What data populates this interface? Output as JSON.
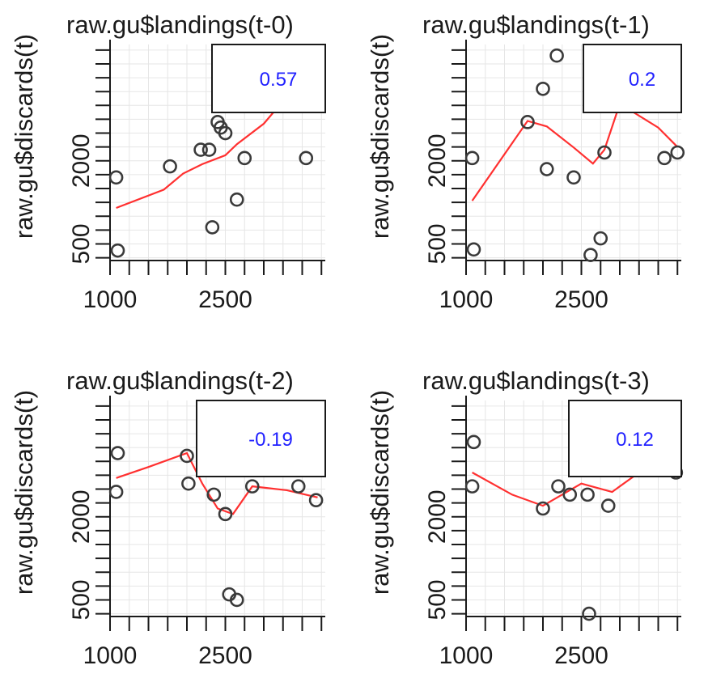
{
  "colors": {
    "series_line": "#ff3030",
    "points": "#3a3a3a",
    "correlation_text": "#2020ff",
    "grid": "#e6e6e6",
    "axis": "#1a1a1a"
  },
  "chart_data": [
    {
      "type": "scatter",
      "title": "raw.gu$landings(t-0)",
      "ylabel": "raw.gu$discards(t)",
      "xlim": [
        1000,
        3800
      ],
      "ylim": [
        200,
        4100
      ],
      "x_ticks": [
        1000,
        2500
      ],
      "y_ticks": [
        500,
        2000
      ],
      "correlation": "0.57",
      "points": [
        [
          1080,
          1700
        ],
        [
          1100,
          380
        ],
        [
          1780,
          1900
        ],
        [
          2180,
          2200
        ],
        [
          2290,
          2200
        ],
        [
          2400,
          2700
        ],
        [
          2500,
          2500
        ],
        [
          2520,
          3200
        ],
        [
          2650,
          3200
        ],
        [
          2650,
          1300
        ],
        [
          2440,
          2600
        ],
        [
          2750,
          2050
        ],
        [
          3550,
          2050
        ],
        [
          2330,
          800
        ]
      ],
      "smooth_line": [
        [
          1080,
          1150
        ],
        [
          1700,
          1480
        ],
        [
          1950,
          1770
        ],
        [
          2200,
          1940
        ],
        [
          2500,
          2100
        ],
        [
          2650,
          2300
        ],
        [
          3000,
          2670
        ],
        [
          3300,
          3160
        ]
      ]
    },
    {
      "type": "scatter",
      "title": "raw.gu$landings(t-1)",
      "ylabel": "raw.gu$discards(t)",
      "xlim": [
        1000,
        3800
      ],
      "ylim": [
        200,
        4100
      ],
      "x_ticks": [
        1000,
        2500
      ],
      "y_ticks": [
        500,
        2000
      ],
      "correlation": "0.2",
      "points": [
        [
          1080,
          2050
        ],
        [
          1100,
          400
        ],
        [
          1800,
          2700
        ],
        [
          2000,
          3300
        ],
        [
          2180,
          3900
        ],
        [
          2050,
          1850
        ],
        [
          2400,
          1700
        ],
        [
          2620,
          300
        ],
        [
          2680,
          3250
        ],
        [
          2800,
          2150
        ],
        [
          2750,
          600
        ],
        [
          3580,
          2050
        ],
        [
          3750,
          2150
        ]
      ],
      "smooth_line": [
        [
          1080,
          1280
        ],
        [
          1800,
          2720
        ],
        [
          2050,
          2620
        ],
        [
          2400,
          2240
        ],
        [
          2650,
          1950
        ],
        [
          2800,
          2200
        ],
        [
          3000,
          3030
        ],
        [
          3500,
          2600
        ],
        [
          3750,
          2250
        ]
      ]
    },
    {
      "type": "scatter",
      "title": "raw.gu$landings(t-2)",
      "ylabel": "raw.gu$discards(t)",
      "xlim": [
        1000,
        3800
      ],
      "ylim": [
        200,
        4100
      ],
      "x_ticks": [
        1000,
        2500
      ],
      "y_ticks": [
        500,
        2000
      ],
      "correlation": "-0.19",
      "points": [
        [
          1080,
          2450
        ],
        [
          1100,
          3150
        ],
        [
          2000,
          3100
        ],
        [
          2020,
          2600
        ],
        [
          2350,
          2400
        ],
        [
          2500,
          2050
        ],
        [
          2550,
          600
        ],
        [
          2650,
          500
        ],
        [
          2850,
          2550
        ],
        [
          3450,
          2550
        ],
        [
          3680,
          2300
        ]
      ],
      "smooth_line": [
        [
          1080,
          2700
        ],
        [
          1500,
          2900
        ],
        [
          2000,
          3150
        ],
        [
          2200,
          2600
        ],
        [
          2400,
          2150
        ],
        [
          2600,
          2050
        ],
        [
          2850,
          2550
        ],
        [
          3300,
          2480
        ],
        [
          3700,
          2350
        ]
      ]
    },
    {
      "type": "scatter",
      "title": "raw.gu$landings(t-3)",
      "ylabel": "raw.gu$discards(t)",
      "xlim": [
        1000,
        3800
      ],
      "ylim": [
        200,
        4100
      ],
      "x_ticks": [
        1000,
        2500
      ],
      "y_ticks": [
        500,
        2000
      ],
      "correlation": "0.12",
      "points": [
        [
          1080,
          2550
        ],
        [
          1100,
          3350
        ],
        [
          2000,
          2150
        ],
        [
          2200,
          2550
        ],
        [
          2350,
          2400
        ],
        [
          2450,
          3350
        ],
        [
          2580,
          2400
        ],
        [
          2600,
          250
        ],
        [
          2850,
          2200
        ],
        [
          3730,
          2800
        ]
      ],
      "smooth_line": [
        [
          1080,
          2800
        ],
        [
          1600,
          2400
        ],
        [
          2000,
          2200
        ],
        [
          2500,
          2600
        ],
        [
          2900,
          2450
        ],
        [
          3300,
          2850
        ],
        [
          3730,
          3320
        ]
      ]
    }
  ]
}
